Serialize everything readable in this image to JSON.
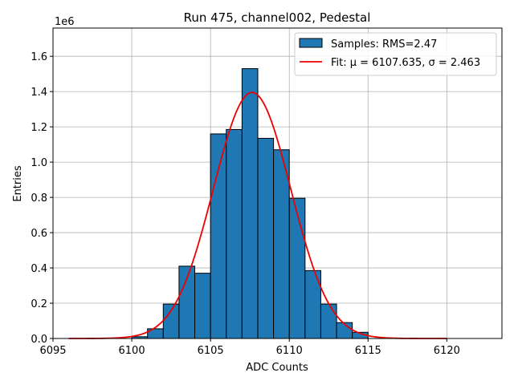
{
  "chart_data": {
    "type": "bar",
    "title": "Run 475, channel002, Pedestal",
    "xlabel": "ADC Counts",
    "ylabel": "Entries",
    "y_multiplier": "1e6",
    "xlim": [
      6095,
      6123.5
    ],
    "ylim": [
      0,
      1.76
    ],
    "xticks": [
      6095,
      6100,
      6105,
      6110,
      6115,
      6120
    ],
    "xtick_labels": [
      "6095",
      "6100",
      "6105",
      "6110",
      "6115",
      "6120"
    ],
    "yticks": [
      0,
      0.2,
      0.4,
      0.6,
      0.8,
      1.0,
      1.2,
      1.4,
      1.6
    ],
    "ytick_labels": [
      "0.0",
      "0.2",
      "0.4",
      "0.6",
      "0.8",
      "1.0",
      "1.2",
      "1.4",
      "1.6"
    ],
    "grid": true,
    "legend_position": "top-right",
    "histogram": {
      "name": "Samples: RMS=2.47",
      "color": "#1f77b4",
      "edge_color": "#000000",
      "bin_edges": [
        6100,
        6101,
        6102,
        6103,
        6104,
        6105,
        6106,
        6107,
        6108,
        6109,
        6110,
        6111,
        6112,
        6113,
        6114,
        6115
      ],
      "values": [
        0.01,
        0.055,
        0.195,
        0.41,
        0.37,
        1.16,
        1.185,
        1.53,
        1.135,
        1.07,
        0.795,
        0.385,
        0.195,
        0.09,
        0.035
      ]
    },
    "fit": {
      "name": "Fit: μ = 6107.635, σ = 2.463",
      "color": "#ee0000",
      "mu": 6107.635,
      "sigma": 2.463,
      "amplitude": 1.395,
      "x_range": [
        6096,
        6120
      ]
    }
  }
}
